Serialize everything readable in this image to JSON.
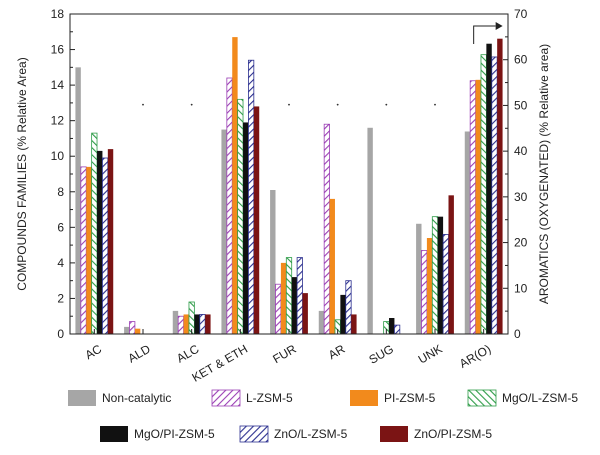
{
  "chart_data": {
    "type": "bar",
    "categories": [
      "AC",
      "ALD",
      "ALC",
      "KET & ETH",
      "FUR",
      "AR",
      "SUG",
      "UNK",
      "AR(O)"
    ],
    "ylabel": "COMPOUNDS FAMILIES (% Relative Area)",
    "y2label": "AROMATICS (OXYGENATED) (% Relative area)",
    "ylim": [
      0,
      18
    ],
    "y2lim": [
      0,
      70
    ],
    "yticks": [
      0,
      2,
      4,
      6,
      8,
      10,
      12,
      14,
      16,
      18
    ],
    "y2ticks": [
      0,
      10,
      20,
      30,
      40,
      50,
      60,
      70
    ],
    "secondary_axis_category": "AR(O)",
    "legend_position": "bottom",
    "series": [
      {
        "name": "Non-catalytic",
        "color": "#a6a6a6",
        "pattern": "solid",
        "values": [
          15.0,
          0.4,
          1.3,
          11.5,
          8.1,
          1.3,
          11.6,
          6.2,
          44.3
        ]
      },
      {
        "name": "L-ZSM-5",
        "color": "#9b3fb5",
        "pattern": "hatch-diag",
        "values": [
          9.4,
          0.7,
          1.0,
          14.4,
          2.8,
          11.8,
          0.0,
          4.7,
          55.4
        ]
      },
      {
        "name": "PI-ZSM-5",
        "color": "#f28a1c",
        "pattern": "solid",
        "values": [
          9.4,
          0.3,
          1.1,
          16.7,
          4.0,
          7.6,
          0.0,
          5.4,
          55.6
        ]
      },
      {
        "name": "MgO/L-ZSM-5",
        "color": "#2e9c48",
        "pattern": "hatch-diag-inverse",
        "values": [
          11.3,
          0.0,
          1.8,
          13.2,
          4.3,
          0.8,
          0.7,
          6.6,
          61.1
        ]
      },
      {
        "name": "MgO/PI-ZSM-5",
        "color": "#111111",
        "pattern": "solid",
        "values": [
          10.3,
          0.0,
          1.1,
          11.9,
          3.2,
          2.2,
          0.9,
          6.6,
          63.5
        ]
      },
      {
        "name": "ZnO/L-ZSM-5",
        "color": "#2b2f8f",
        "pattern": "hatch-diag",
        "values": [
          9.9,
          0.0,
          1.1,
          15.4,
          4.3,
          3.0,
          0.5,
          5.6,
          60.6
        ]
      },
      {
        "name": "ZnO/PI-ZSM-5",
        "color": "#7b1414",
        "pattern": "solid",
        "values": [
          10.4,
          0.0,
          1.1,
          12.8,
          2.3,
          1.1,
          0.0,
          7.8,
          64.6
        ]
      }
    ]
  }
}
